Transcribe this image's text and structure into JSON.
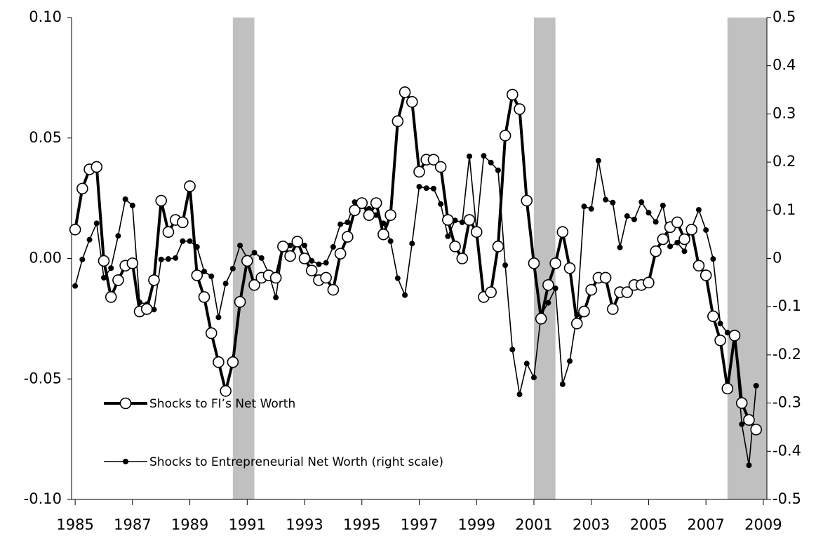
{
  "chart_data": {
    "type": "line",
    "x": [
      1985,
      1985.25,
      1985.5,
      1985.75,
      1986,
      1986.25,
      1986.5,
      1986.75,
      1987,
      1987.25,
      1987.5,
      1987.75,
      1988,
      1988.25,
      1988.5,
      1988.75,
      1989,
      1989.25,
      1989.5,
      1989.75,
      1990,
      1990.25,
      1990.5,
      1990.75,
      1991,
      1991.25,
      1991.5,
      1991.75,
      1992,
      1992.25,
      1992.5,
      1992.75,
      1993,
      1993.25,
      1993.5,
      1993.75,
      1994,
      1994.25,
      1994.5,
      1994.75,
      1995,
      1995.25,
      1995.5,
      1995.75,
      1996,
      1996.25,
      1996.5,
      1996.75,
      1997,
      1997.25,
      1997.5,
      1997.75,
      1998,
      1998.25,
      1998.5,
      1998.75,
      1999,
      1999.25,
      1999.5,
      1999.75,
      2000,
      2000.25,
      2000.5,
      2000.75,
      2001,
      2001.25,
      2001.5,
      2001.75,
      2002,
      2002.25,
      2002.5,
      2002.75,
      2003,
      2003.25,
      2003.5,
      2003.75,
      2004,
      2004.25,
      2004.5,
      2004.75,
      2005,
      2005.25,
      2005.5,
      2005.75,
      2006,
      2006.25,
      2006.5,
      2006.75,
      2007,
      2007.25,
      2007.5,
      2007.75,
      2008,
      2008.25,
      2008.5,
      2008.75
    ],
    "series": [
      {
        "name": "Shocks to FI’s Net Worth",
        "color": "#000000",
        "marker": "open-circle",
        "values": [
          0.012,
          0.029,
          0.037,
          0.038,
          -0.001,
          -0.016,
          -0.009,
          -0.003,
          -0.002,
          -0.022,
          -0.021,
          -0.009,
          0.024,
          0.011,
          0.016,
          0.015,
          0.03,
          -0.007,
          -0.016,
          -0.031,
          -0.043,
          -0.055,
          -0.043,
          -0.018,
          -0.001,
          -0.011,
          -0.008,
          -0.007,
          -0.008,
          0.005,
          0.001,
          0.007,
          0.0,
          -0.005,
          -0.009,
          -0.008,
          -0.013,
          0.002,
          0.009,
          0.02,
          0.023,
          0.018,
          0.023,
          0.01,
          0.018,
          0.057,
          0.069,
          0.065,
          0.036,
          0.041,
          0.041,
          0.038,
          0.016,
          0.005,
          0.0,
          0.016,
          0.011,
          -0.016,
          -0.014,
          0.005,
          0.051,
          0.068,
          0.062,
          0.024,
          -0.002,
          -0.025,
          -0.011,
          -0.002,
          0.011,
          -0.004,
          -0.027,
          -0.022,
          -0.013,
          -0.008,
          -0.008,
          -0.021,
          -0.014,
          -0.014,
          -0.011,
          -0.011,
          -0.01,
          0.003,
          0.008,
          0.013,
          0.015,
          0.008,
          0.012,
          -0.003,
          -0.007,
          -0.024,
          -0.034,
          -0.054,
          -0.032,
          -0.06,
          -0.067,
          -0.071
        ]
      },
      {
        "name": "Shocks to Entrepreneurial Net Worth (right scale)",
        "color": "#000000",
        "marker": "dot",
        "axis": "y2",
        "values": [
          -0.057,
          -0.002,
          0.039,
          0.073,
          -0.04,
          -0.02,
          0.047,
          0.123,
          0.11,
          -0.091,
          -0.095,
          -0.106,
          -0.002,
          -0.001,
          0.001,
          0.036,
          0.036,
          0.024,
          -0.027,
          -0.037,
          -0.122,
          -0.052,
          -0.021,
          0.027,
          0.001,
          0.012,
          0.001,
          -0.031,
          -0.081,
          0.024,
          0.027,
          0.031,
          0.027,
          -0.005,
          -0.012,
          -0.009,
          0.024,
          0.071,
          0.075,
          0.117,
          0.108,
          0.103,
          0.09,
          0.073,
          0.036,
          -0.041,
          -0.076,
          0.031,
          0.149,
          0.146,
          0.145,
          0.113,
          0.046,
          0.079,
          0.075,
          0.212,
          0.059,
          0.213,
          0.199,
          0.183,
          -0.014,
          -0.189,
          -0.282,
          -0.218,
          -0.247,
          -0.116,
          -0.092,
          -0.062,
          -0.261,
          -0.213,
          -0.117,
          0.108,
          0.103,
          0.203,
          0.122,
          0.116,
          0.023,
          0.088,
          0.081,
          0.117,
          0.095,
          0.076,
          0.11,
          0.025,
          0.033,
          0.015,
          0.063,
          0.101,
          0.059,
          -0.001,
          -0.135,
          -0.154,
          -0.161,
          -0.344,
          -0.429,
          -0.264
        ]
      }
    ],
    "shaded_regions": [
      [
        1990.5,
        1991.25
      ],
      [
        2001,
        2001.75
      ],
      [
        2007.75,
        2009.125
      ]
    ],
    "shade_color": "#c0c0c0",
    "xlim": [
      1984.875,
      2009.125
    ],
    "xticks": [
      1985,
      1987,
      1989,
      1991,
      1993,
      1995,
      1997,
      1999,
      2001,
      2003,
      2005,
      2007,
      2009
    ],
    "ylim": [
      -0.1,
      0.1
    ],
    "yticks": [
      {
        "value": -0.1,
        "label": "-0.10"
      },
      {
        "value": -0.05,
        "label": "-0.05"
      },
      {
        "value": 0,
        "label": "0.00"
      },
      {
        "value": 0.05,
        "label": "0.05"
      },
      {
        "value": 0.1,
        "label": "0.10"
      }
    ],
    "y2lim": [
      -0.5,
      0.5
    ],
    "y2ticks": [
      -0.5,
      -0.4,
      -0.3,
      -0.2,
      -0.1,
      0,
      0.1,
      0.2,
      0.3,
      0.4,
      0.5
    ],
    "legend": "lower left"
  }
}
